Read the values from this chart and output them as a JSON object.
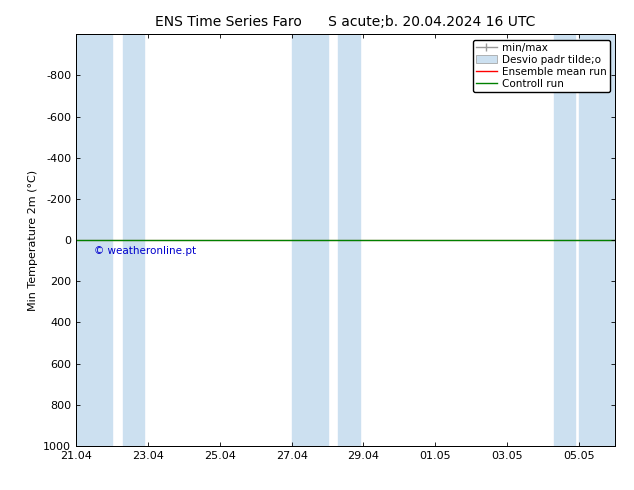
{
  "title": "ENS Time Series Faro      S acute;b. 20.04.2024 16 UTC",
  "ylabel": "Min Temperature 2m (°C)",
  "ylim_bottom": 1000,
  "ylim_top": -1000,
  "yticks": [
    -800,
    -600,
    -400,
    -200,
    0,
    200,
    400,
    600,
    800,
    1000
  ],
  "xtick_labels": [
    "21.04",
    "23.04",
    "25.04",
    "27.04",
    "29.04",
    "01.05",
    "03.05",
    "05.05"
  ],
  "xtick_days": [
    0,
    2,
    4,
    6,
    8,
    10,
    12,
    14
  ],
  "total_days": 15,
  "shaded_spans": [
    [
      0,
      1
    ],
    [
      1.3,
      2.0
    ],
    [
      6,
      7
    ],
    [
      7.3,
      8.0
    ],
    [
      13.3,
      14.0
    ],
    [
      14.0,
      15
    ]
  ],
  "shaded_color": "#cce0f0",
  "bg_color": "#ffffff",
  "ensemble_mean_color": "#ff0000",
  "control_run_color": "#008000",
  "minmax_color": "#999999",
  "legend_entries": [
    "min/max",
    "Desvio padr tilde;o",
    "Ensemble mean run",
    "Controll run"
  ],
  "copyright_text": "© weatheronline.pt",
  "copyright_color": "#0000cc",
  "title_fontsize": 10,
  "axis_label_fontsize": 8,
  "tick_fontsize": 8,
  "legend_fontsize": 7.5,
  "zero_line_y": 0
}
